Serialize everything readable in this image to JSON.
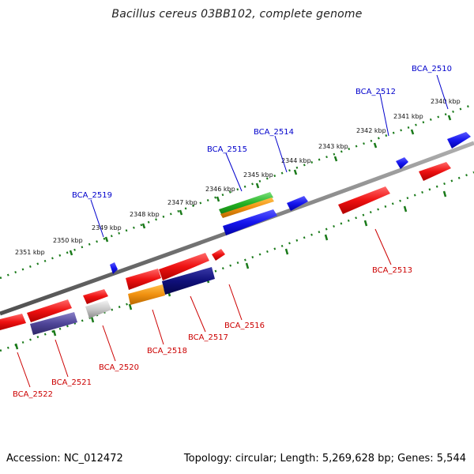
{
  "title": "Bacillus cereus 03BB102, complete genome",
  "footer": {
    "accession": "Accession: NC_012472",
    "summary": "Topology: circular; Length: 5,269,628 bp; Genes: 5,544"
  },
  "colors": {
    "forward_label": "#0000cc",
    "reverse_label": "#cc0000",
    "backbone": "#808080",
    "ticks": "#1a7a1a"
  },
  "scale_labels": [
    "2340 kbp",
    "2341 kbp",
    "2342 kbp",
    "2343 kbp",
    "2344 kbp",
    "2345 kbp",
    "2346 kbp",
    "2347 kbp",
    "2348 kbp",
    "2349 kbp",
    "2350 kbp",
    "2351 kbp"
  ],
  "forward_gene_labels": [
    "BCA_2510",
    "BCA_2512",
    "BCA_2514",
    "BCA_2515",
    "BCA_2519"
  ],
  "reverse_gene_labels": [
    "BCA_2513",
    "BCA_2516",
    "BCA_2517",
    "BCA_2518",
    "BCA_2520",
    "BCA_2521",
    "BCA_2522"
  ]
}
